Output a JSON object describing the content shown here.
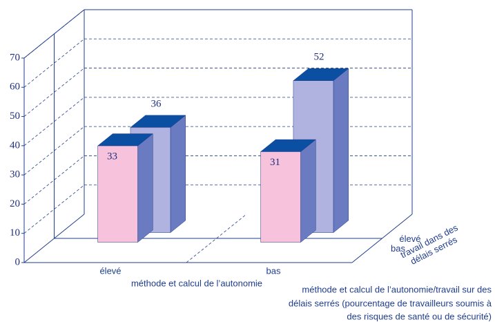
{
  "chart_data": {
    "type": "bar3d",
    "categories": [
      "élevé",
      "bas"
    ],
    "xlabel": "méthode et calcul de l’autonomie",
    "depth_label": [
      "travail dans des",
      "délais serrés"
    ],
    "note": [
      "méthode et calcul de l’autonomie/travail sur des",
      "délais serrés (pourcentage de travailleurs soumis à",
      "des risques de santé ou de sécurité)"
    ],
    "series": [
      {
        "name": "bas",
        "color": "#f7c3dc",
        "values": [
          33,
          31
        ]
      },
      {
        "name": "élevé",
        "color": "#b0b3df",
        "values": [
          36,
          52
        ]
      }
    ],
    "side_color": "#6a7bc2",
    "top_color": "#0b4fa3",
    "ylim": [
      0,
      70
    ],
    "yticks": [
      0,
      10,
      20,
      30,
      40,
      50,
      60,
      70
    ],
    "grid": true
  }
}
